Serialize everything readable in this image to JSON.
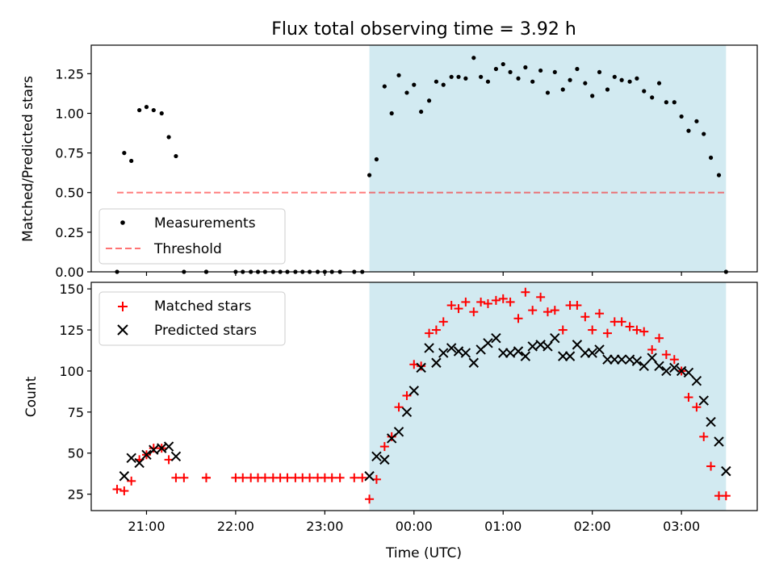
{
  "figure": {
    "title": "Flux total observing time = 3.92 h",
    "xlabel": "Time (UTC)",
    "x_ticks": [
      {
        "value": 21.0,
        "label": "21:00"
      },
      {
        "value": 22.0,
        "label": "22:00"
      },
      {
        "value": 23.0,
        "label": "23:00"
      },
      {
        "value": 24.0,
        "label": "00:00"
      },
      {
        "value": 25.0,
        "label": "01:00"
      },
      {
        "value": 26.0,
        "label": "02:00"
      },
      {
        "value": 27.0,
        "label": "03:00"
      }
    ],
    "xlim": [
      20.38,
      27.85
    ],
    "shaded_span": {
      "x_start": 23.5,
      "x_end": 27.5,
      "color": "#add8e6"
    }
  },
  "chart_data": [
    {
      "type": "scatter",
      "ylabel": "Matched/Predicted stars",
      "ylim": [
        0,
        1.43
      ],
      "y_ticks": [
        {
          "value": 0.0,
          "label": "0.00"
        },
        {
          "value": 0.25,
          "label": "0.25"
        },
        {
          "value": 0.5,
          "label": "0.50"
        },
        {
          "value": 0.75,
          "label": "0.75"
        },
        {
          "value": 1.0,
          "label": "1.00"
        },
        {
          "value": 1.25,
          "label": "1.25"
        }
      ],
      "legend": {
        "placement": "lower-left",
        "entries": [
          "Measurements",
          "Threshold"
        ]
      },
      "threshold": {
        "name": "Threshold",
        "y": 0.5,
        "x_start": 20.67,
        "x_end": 27.5,
        "color": "#ff0000",
        "style": "dashed",
        "alpha": 0.5
      },
      "series": [
        {
          "name": "Measurements",
          "color": "#000000",
          "marker": "dot",
          "x": [
            20.67,
            20.75,
            20.83,
            20.92,
            21.0,
            21.08,
            21.17,
            21.25,
            21.33,
            21.42,
            21.67,
            21.67,
            22.0,
            22.08,
            22.17,
            22.25,
            22.33,
            22.42,
            22.5,
            22.58,
            22.67,
            22.75,
            22.83,
            22.92,
            23.0,
            23.08,
            23.17,
            23.33,
            23.42,
            23.5,
            23.58,
            23.67,
            23.75,
            23.83,
            23.92,
            24.0,
            24.08,
            24.17,
            24.25,
            24.33,
            24.42,
            24.5,
            24.58,
            24.67,
            24.75,
            24.83,
            24.92,
            25.0,
            25.08,
            25.17,
            25.25,
            25.33,
            25.42,
            25.5,
            25.58,
            25.67,
            25.75,
            25.83,
            25.92,
            26.0,
            26.08,
            26.17,
            26.25,
            26.33,
            26.42,
            26.5,
            26.58,
            26.67,
            26.75,
            26.83,
            26.92,
            27.0,
            27.08,
            27.17,
            27.25,
            27.33,
            27.42,
            27.5
          ],
          "y": [
            0.0,
            0.75,
            0.7,
            1.02,
            1.04,
            1.02,
            1.0,
            0.85,
            0.73,
            0.0,
            0.0,
            0.0,
            0.0,
            0.0,
            0.0,
            0.0,
            0.0,
            0.0,
            0.0,
            0.0,
            0.0,
            0.0,
            0.0,
            0.0,
            0.0,
            0.0,
            0.0,
            0.0,
            0.0,
            0.61,
            0.71,
            1.17,
            1.0,
            1.24,
            1.13,
            1.18,
            1.01,
            1.08,
            1.2,
            1.18,
            1.23,
            1.23,
            1.22,
            1.35,
            1.23,
            1.2,
            1.28,
            1.31,
            1.26,
            1.22,
            1.29,
            1.2,
            1.27,
            1.13,
            1.26,
            1.15,
            1.21,
            1.28,
            1.19,
            1.11,
            1.26,
            1.15,
            1.23,
            1.21,
            1.2,
            1.22,
            1.14,
            1.1,
            1.19,
            1.07,
            1.07,
            0.98,
            0.89,
            0.95,
            0.87,
            0.72,
            0.61,
            0.0
          ]
        }
      ]
    },
    {
      "type": "scatter",
      "ylabel": "Count",
      "ylim": [
        15,
        154
      ],
      "y_ticks": [
        {
          "value": 25,
          "label": "25"
        },
        {
          "value": 50,
          "label": "50"
        },
        {
          "value": 75,
          "label": "75"
        },
        {
          "value": 100,
          "label": "100"
        },
        {
          "value": 125,
          "label": "125"
        },
        {
          "value": 150,
          "label": "150"
        }
      ],
      "legend": {
        "placement": "upper-left",
        "entries": [
          "Matched stars",
          "Predicted stars"
        ]
      },
      "series": [
        {
          "name": "Matched stars",
          "color": "#ff0000",
          "marker": "plus",
          "x": [
            20.67,
            20.75,
            20.83,
            20.92,
            21.0,
            21.08,
            21.17,
            21.25,
            21.33,
            21.42,
            21.67,
            21.67,
            22.0,
            22.08,
            22.17,
            22.25,
            22.33,
            22.42,
            22.5,
            22.58,
            22.67,
            22.75,
            22.83,
            22.92,
            23.0,
            23.08,
            23.17,
            23.33,
            23.42,
            23.5,
            23.58,
            23.67,
            23.75,
            23.83,
            23.92,
            24.0,
            24.08,
            24.17,
            24.25,
            24.33,
            24.42,
            24.5,
            24.58,
            24.67,
            24.75,
            24.83,
            24.92,
            25.0,
            25.08,
            25.17,
            25.25,
            25.33,
            25.42,
            25.5,
            25.58,
            25.67,
            25.75,
            25.83,
            25.92,
            26.0,
            26.08,
            26.17,
            26.25,
            26.33,
            26.42,
            26.5,
            26.58,
            26.67,
            26.75,
            26.83,
            26.92,
            27.0,
            27.08,
            27.17,
            27.25,
            27.33,
            27.42,
            27.5
          ],
          "y": [
            28,
            27,
            33,
            46,
            49,
            53,
            53,
            46,
            35,
            35,
            35,
            35,
            35,
            35,
            35,
            35,
            35,
            35,
            35,
            35,
            35,
            35,
            35,
            35,
            35,
            35,
            35,
            35,
            35,
            22,
            34,
            54,
            60,
            78,
            85,
            104,
            103,
            123,
            125,
            130,
            140,
            138,
            142,
            136,
            142,
            141,
            143,
            144,
            142,
            132,
            148,
            137,
            145,
            136,
            137,
            125,
            140,
            140,
            133,
            125,
            135,
            123,
            130,
            130,
            127,
            125,
            124,
            113,
            120,
            110,
            107,
            100,
            84,
            78,
            60,
            42,
            24,
            24
          ]
        },
        {
          "name": "Predicted stars",
          "color": "#000000",
          "marker": "x",
          "x": [
            20.75,
            20.83,
            20.92,
            21.0,
            21.08,
            21.17,
            21.25,
            21.33,
            23.5,
            23.58,
            23.67,
            23.75,
            23.83,
            23.92,
            24.0,
            24.08,
            24.17,
            24.25,
            24.33,
            24.42,
            24.5,
            24.58,
            24.67,
            24.75,
            24.83,
            24.92,
            25.0,
            25.08,
            25.17,
            25.25,
            25.33,
            25.42,
            25.5,
            25.58,
            25.67,
            25.75,
            25.83,
            25.92,
            26.0,
            26.08,
            26.17,
            26.25,
            26.33,
            26.42,
            26.5,
            26.58,
            26.67,
            26.75,
            26.83,
            26.92,
            27.0,
            27.08,
            27.17,
            27.25,
            27.33,
            27.42,
            27.5
          ],
          "y": [
            36,
            47,
            44,
            49,
            52,
            53,
            54,
            48,
            36,
            48,
            46,
            59,
            63,
            75,
            88,
            102,
            114,
            105,
            111,
            114,
            112,
            111,
            105,
            113,
            117,
            120,
            111,
            111,
            112,
            109,
            115,
            116,
            115,
            120,
            109,
            109,
            116,
            111,
            111,
            113,
            107,
            107,
            107,
            107,
            106,
            103,
            108,
            103,
            100,
            102,
            100,
            99,
            94,
            82,
            69,
            57,
            39
          ]
        }
      ]
    }
  ]
}
